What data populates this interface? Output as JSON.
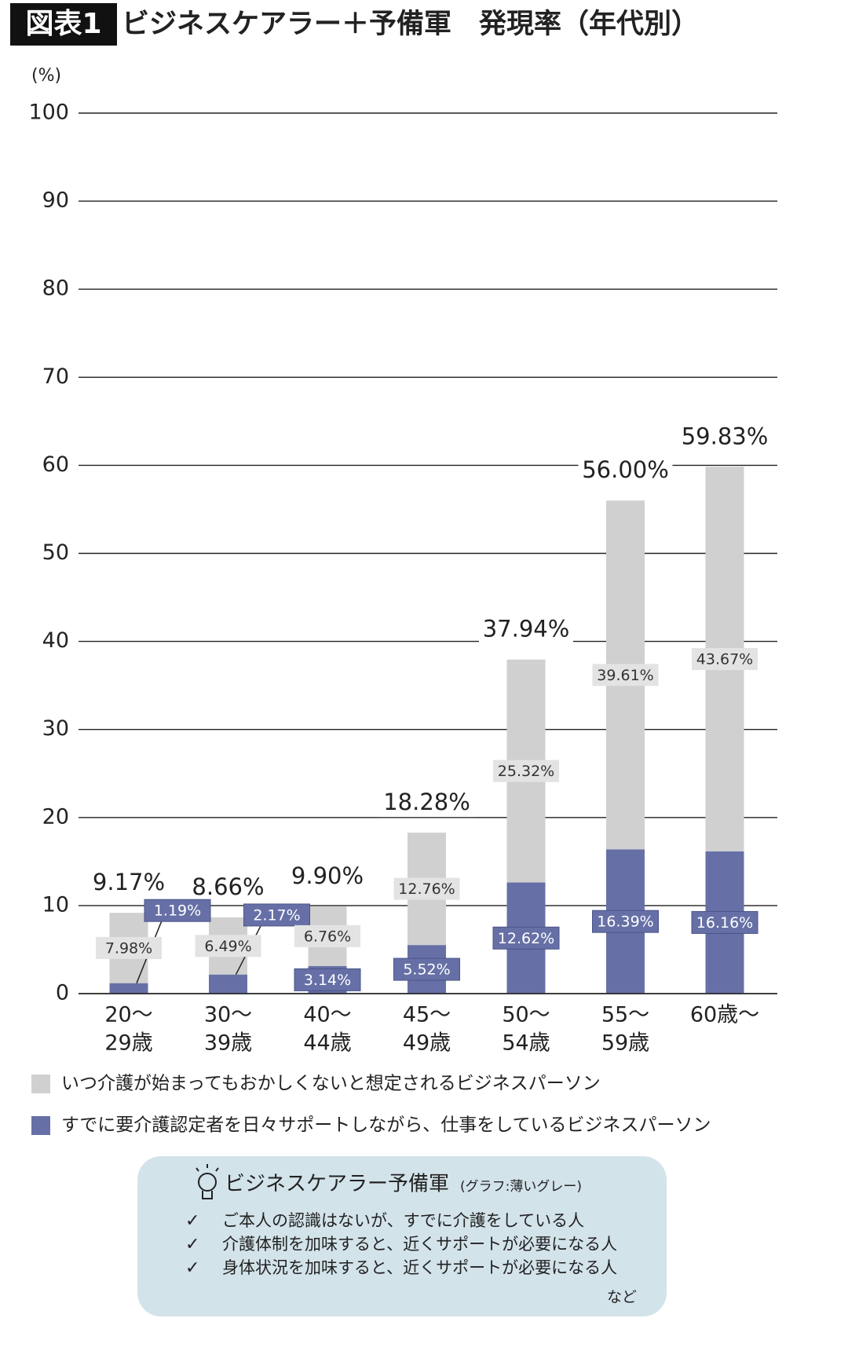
{
  "chart_data": {
    "type": "stacked_bar",
    "title_badge": "図表1",
    "title": "ビジネスケアラー＋予備軍　発現率（年代別）",
    "y_unit": "(%)",
    "categories": [
      [
        "20〜",
        "29歳"
      ],
      [
        "30〜",
        "39歳"
      ],
      [
        "40〜",
        "44歳"
      ],
      [
        "45〜",
        "49歳"
      ],
      [
        "50〜",
        "54歳"
      ],
      [
        "55〜",
        "59歳"
      ],
      [
        "60歳〜"
      ]
    ],
    "series": [
      {
        "name": "すでに要介護認定者を日々サポートしながら、仕事をしているビジネスパーソン",
        "color": "#6670a6",
        "values": [
          1.19,
          2.17,
          3.14,
          5.52,
          12.62,
          16.39,
          16.16
        ],
        "value_labels": [
          "1.19%",
          "2.17%",
          "3.14%",
          "5.52%",
          "12.62%",
          "16.39%",
          "16.16%"
        ]
      },
      {
        "name": "いつ介護が始まってもおかしくないと想定されるビジネスパーソン",
        "color": "#d0d0d0",
        "values": [
          7.98,
          6.49,
          6.76,
          12.76,
          25.32,
          39.61,
          43.67
        ],
        "value_labels": [
          "7.98%",
          "6.49%",
          "6.76%",
          "12.76%",
          "25.32%",
          "39.61%",
          "43.67%"
        ]
      }
    ],
    "totals": [
      9.17,
      8.66,
      9.9,
      18.28,
      37.94,
      56.0,
      59.83
    ],
    "total_labels": [
      "9.17%",
      "8.66%",
      "9.90%",
      "18.28%",
      "37.94%",
      "56.00%",
      "59.83%"
    ],
    "ylim": [
      0,
      100
    ],
    "yticks": [
      0,
      10,
      20,
      30,
      40,
      50,
      60,
      70,
      80,
      90,
      100
    ],
    "grid": true
  },
  "info": {
    "title": "ビジネスケアラー予備軍",
    "note": "(グラフ:薄いグレー)",
    "items": [
      "ご本人の認識はないが、すでに介護をしている人",
      "介護体制を加味すると、近くサポートが必要になる人",
      "身体状況を加味すると、近くサポートが必要になる人"
    ],
    "footer": "など"
  }
}
